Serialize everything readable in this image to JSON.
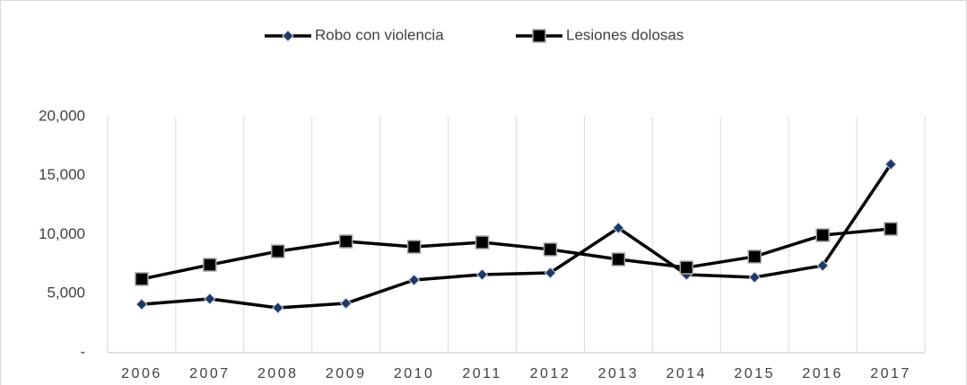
{
  "chart_data": {
    "type": "line",
    "categories": [
      "2006",
      "2007",
      "2008",
      "2009",
      "2010",
      "2011",
      "2012",
      "2013",
      "2014",
      "2015",
      "2016",
      "2017"
    ],
    "series": [
      {
        "name": "Robo con violencia",
        "color": "#1f3864",
        "marker": "diamond",
        "values": [
          4100,
          4560,
          3800,
          4180,
          6160,
          6620,
          6770,
          10570,
          6620,
          6390,
          7380,
          15970
        ]
      },
      {
        "name": "Lesiones dolosas",
        "color": "#000000",
        "marker": "square",
        "values": [
          6240,
          7450,
          8590,
          9430,
          8970,
          9350,
          8750,
          7910,
          7220,
          8140,
          9960,
          10490
        ]
      }
    ],
    "ylim": [
      0,
      20000
    ],
    "yticks": [
      {
        "value": 0,
        "label": "-"
      },
      {
        "value": 5000,
        "label": "5,000"
      },
      {
        "value": 10000,
        "label": "10,000"
      },
      {
        "value": 15000,
        "label": "15,000"
      },
      {
        "value": 20000,
        "label": "20,000"
      }
    ],
    "grid": true,
    "legend": "top"
  }
}
